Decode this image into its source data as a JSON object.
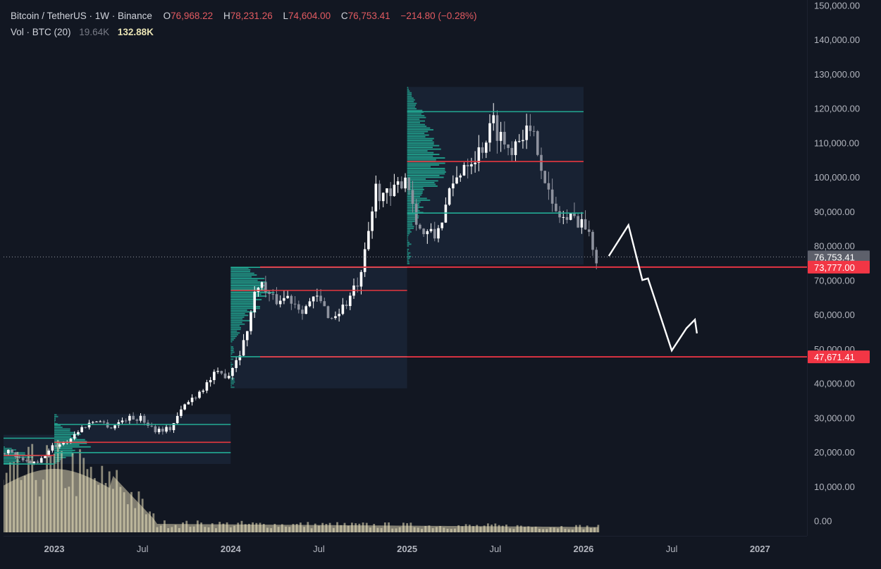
{
  "header": {
    "symbol": "Bitcoin / TetherUS · 1W · Binance",
    "open_label": "O",
    "open": "76,968.22",
    "high_label": "H",
    "high": "78,231.26",
    "low_label": "L",
    "low": "74,604.00",
    "close_label": "C",
    "close": "76,753.41",
    "change": "−214.80 (−0.28%)",
    "volume_label": "Vol · BTC (20)",
    "volume_value": "19.64K",
    "volume_ma": "132.88K"
  },
  "colors": {
    "background": "#121722",
    "up": "#ffffff",
    "down": "#8e929e",
    "poc_line": "#e6373f",
    "value_area": "#22ab94",
    "volume": "#efe6c0",
    "price_badge": "#5d606b",
    "level_badge": "#f23645",
    "projection": "#ffffff"
  },
  "chart_data": {
    "type": "candlestick",
    "interval": "1W",
    "y_axis": {
      "ticks": [
        0,
        10000,
        20000,
        30000,
        40000,
        50000,
        60000,
        70000,
        80000,
        90000,
        100000,
        110000,
        120000,
        130000,
        140000,
        150000
      ],
      "tick_labels": [
        "0.00",
        "10,000.00",
        "20,000.00",
        "30,000.00",
        "40,000.00",
        "50,000.00",
        "60,000.00",
        "70,000.00",
        "80,000.00",
        "90,000.00",
        "100,000.00",
        "110,000.00",
        "120,000.00",
        "130,000.00",
        "140,000.00",
        "150,000.00"
      ],
      "range": [
        0,
        150000
      ]
    },
    "x_axis": {
      "ticks": [
        {
          "date": "2023-01",
          "label": "2023",
          "bold": true
        },
        {
          "date": "2023-07",
          "label": "Jul",
          "bold": false
        },
        {
          "date": "2024-01",
          "label": "2024",
          "bold": true
        },
        {
          "date": "2024-07",
          "label": "Jul",
          "bold": false
        },
        {
          "date": "2025-01",
          "label": "2025",
          "bold": true
        },
        {
          "date": "2025-07",
          "label": "Jul",
          "bold": false
        },
        {
          "date": "2026-01",
          "label": "2026",
          "bold": true
        },
        {
          "date": "2026-07",
          "label": "Jul",
          "bold": false
        },
        {
          "date": "2027-01",
          "label": "2027",
          "bold": true
        }
      ],
      "range": [
        "2022-09",
        "2027-09"
      ]
    },
    "price_series": [
      [
        "2022-09",
        19800
      ],
      [
        "2022-10",
        20300
      ],
      [
        "2022-11",
        17200
      ],
      [
        "2022-12",
        16700
      ],
      [
        "2023-01",
        21500
      ],
      [
        "2023-02",
        23200
      ],
      [
        "2023-03",
        27000
      ],
      [
        "2023-04",
        29500
      ],
      [
        "2023-05",
        27200
      ],
      [
        "2023-06",
        29800
      ],
      [
        "2023-07",
        29800
      ],
      [
        "2023-08",
        26500
      ],
      [
        "2023-09",
        26800
      ],
      [
        "2023-10",
        33600
      ],
      [
        "2023-11",
        37700
      ],
      [
        "2023-12",
        42200
      ],
      [
        "2024-01",
        42800
      ],
      [
        "2024-02",
        51700
      ],
      [
        "2024-03",
        69800
      ],
      [
        "2024-04",
        64000
      ],
      [
        "2024-05",
        65200
      ],
      [
        "2024-06",
        62000
      ],
      [
        "2024-07",
        64600
      ],
      [
        "2024-08",
        58900
      ],
      [
        "2024-09",
        63300
      ],
      [
        "2024-10",
        70500
      ],
      [
        "2024-11",
        96600
      ],
      [
        "2024-12",
        93500
      ],
      [
        "2025-01",
        101000
      ],
      [
        "2025-02",
        84300
      ],
      [
        "2025-03",
        82500
      ],
      [
        "2025-04",
        94200
      ],
      [
        "2025-05",
        104600
      ],
      [
        "2025-06",
        107200
      ],
      [
        "2025-07",
        115800
      ],
      [
        "2025-08",
        108200
      ],
      [
        "2025-09",
        114000
      ],
      [
        "2025-10",
        109500
      ],
      [
        "2025-11",
        90500
      ],
      [
        "2025-12",
        87500
      ],
      [
        "2026-01",
        88000
      ],
      [
        "2026-02",
        76753
      ]
    ],
    "last_price": {
      "value": 76753.41,
      "label": "76,753.41"
    },
    "levels": [
      {
        "value": 73777,
        "label": "73,777.00"
      },
      {
        "value": 47671.41,
        "label": "47,671.41"
      }
    ],
    "projection": [
      [
        "2026-02",
        77000
      ],
      [
        "2026-03",
        86000
      ],
      [
        "2026-05",
        70000
      ],
      [
        "2026-05",
        70500
      ],
      [
        "2026-07",
        49500
      ],
      [
        "2026-08",
        56000
      ],
      [
        "2026-08",
        58500
      ],
      [
        "2026-09",
        54500
      ]
    ],
    "volume_profiles": [
      {
        "start": "2022-09",
        "end": "2023-01",
        "low": 16500,
        "high": 25000,
        "poc": 19000
      },
      {
        "start": "2023-01",
        "end": "2024-01",
        "low": 16500,
        "high": 31000,
        "poc": 22800
      },
      {
        "start": "2024-01",
        "end": "2025-01",
        "low": 38500,
        "high": 73700,
        "poc": 67000
      },
      {
        "start": "2025-01",
        "end": "2026-01",
        "low": 74500,
        "high": 126200,
        "poc": 104500
      }
    ],
    "value_area_lines": [
      {
        "start": "2022-09",
        "end": "2023-01",
        "value": 24000
      },
      {
        "start": "2022-09",
        "end": "2023-01",
        "value": 16500
      },
      {
        "start": "2023-01",
        "end": "2024-01",
        "value": 28000
      },
      {
        "start": "2023-01",
        "end": "2024-01",
        "value": 19800
      },
      {
        "start": "2024-01",
        "end": "2025-01",
        "value": 73700
      },
      {
        "start": "2024-01",
        "end": "2025-01",
        "value": 47700
      },
      {
        "start": "2025-01",
        "end": "2026-01",
        "value": 119000
      },
      {
        "start": "2025-01",
        "end": "2026-01",
        "value": 89500
      }
    ],
    "volume_note": "Volume histogram with moving-average area shown along the bottom"
  }
}
